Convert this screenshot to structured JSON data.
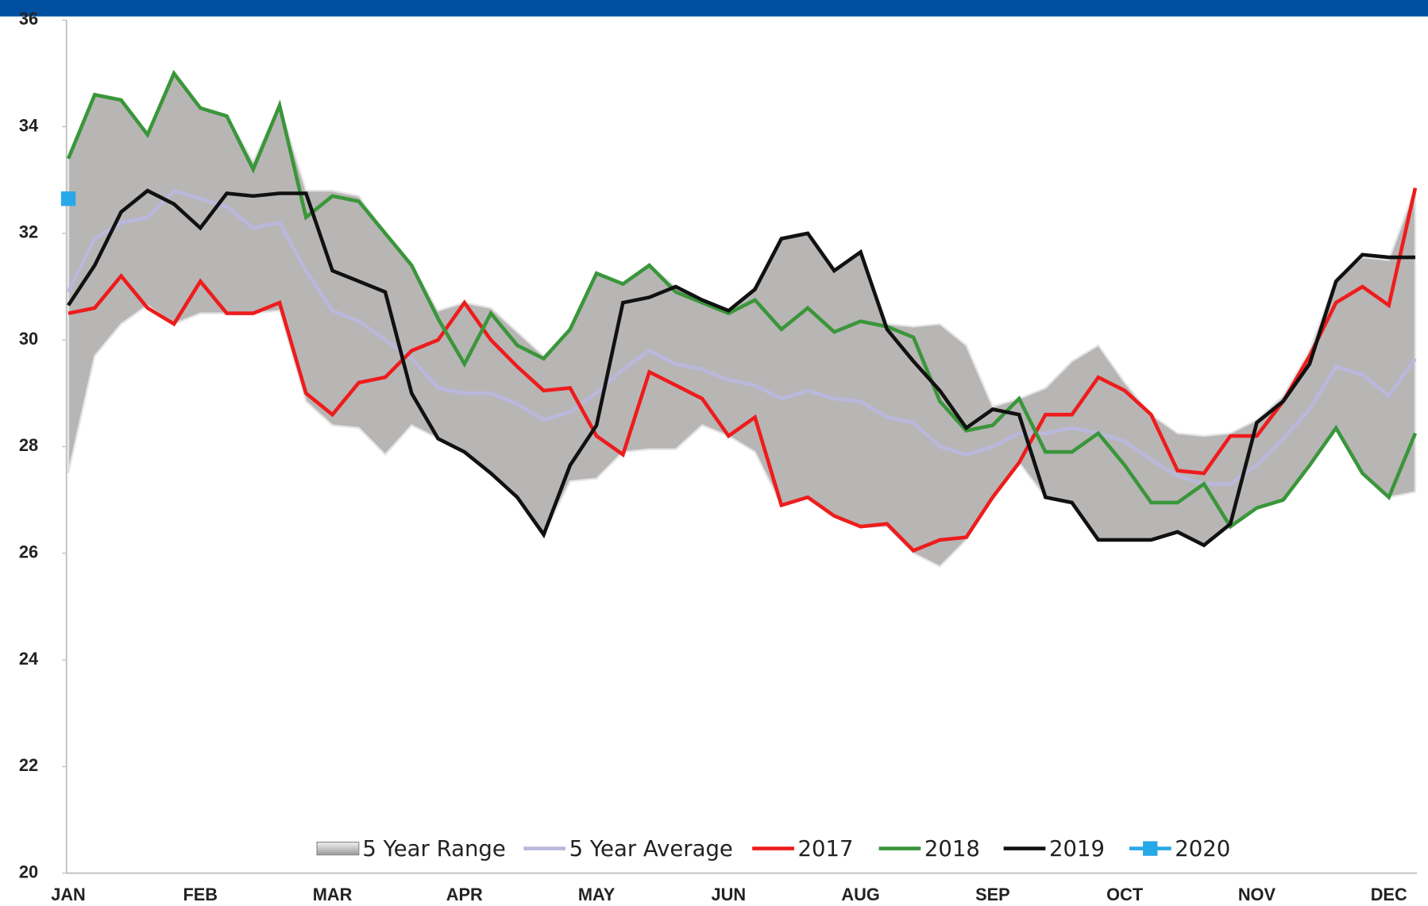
{
  "chart_data": {
    "type": "line",
    "categories": [
      "JAN",
      null,
      null,
      null,
      null,
      "FEB",
      null,
      null,
      null,
      null,
      "MAR",
      null,
      null,
      null,
      null,
      "APR",
      null,
      null,
      null,
      null,
      "MAY",
      null,
      null,
      null,
      null,
      "JUN",
      null,
      null,
      null,
      null,
      "AUG",
      null,
      null,
      null,
      null,
      "SEP",
      null,
      null,
      null,
      null,
      "OCT",
      null,
      null,
      null,
      null,
      "NOV",
      null,
      null,
      null,
      null,
      "DEC",
      null
    ],
    "ylim": [
      20,
      36
    ],
    "yticks": [
      20,
      22,
      24,
      26,
      28,
      30,
      32,
      34,
      36
    ],
    "grid": false,
    "legend": "bottom",
    "series": [
      {
        "name": "5 Year Range",
        "style": "band",
        "color": "#b8b5b5",
        "high": [
          33.4,
          34.6,
          34.5,
          33.85,
          35.0,
          34.35,
          34.2,
          33.35,
          34.4,
          32.8,
          32.8,
          32.7,
          32.0,
          31.4,
          30.55,
          30.7,
          30.6,
          30.15,
          29.7,
          30.2,
          31.25,
          31.05,
          31.4,
          31.0,
          30.75,
          30.55,
          31.0,
          31.9,
          32.0,
          31.3,
          31.65,
          30.3,
          30.25,
          30.3,
          29.9,
          28.75,
          28.9,
          29.1,
          29.6,
          29.9,
          29.2,
          28.6,
          28.25,
          28.2,
          28.25,
          28.5,
          28.95,
          29.8,
          31.15,
          31.55,
          31.5,
          32.85
        ],
        "low": [
          27.5,
          29.7,
          30.3,
          30.65,
          30.3,
          30.5,
          30.5,
          30.5,
          30.55,
          28.85,
          28.4,
          28.35,
          27.85,
          28.4,
          28.15,
          27.9,
          27.5,
          27.05,
          26.35,
          27.35,
          27.4,
          27.9,
          27.95,
          27.95,
          28.4,
          28.2,
          27.9,
          26.9,
          27.05,
          26.7,
          26.5,
          26.5,
          26.0,
          25.75,
          26.25,
          27.05,
          27.7,
          27.05,
          26.95,
          26.25,
          26.25,
          26.25,
          26.4,
          26.15,
          26.5,
          26.85,
          27.0,
          27.65,
          28.35,
          27.5,
          27.05,
          27.15
        ]
      },
      {
        "name": "5 Year Average",
        "style": "line",
        "color": "#b9b8dc",
        "values": [
          30.9,
          31.9,
          32.2,
          32.3,
          32.8,
          32.65,
          32.5,
          32.1,
          32.2,
          31.3,
          30.55,
          30.35,
          30.0,
          29.65,
          29.1,
          29.0,
          29.0,
          28.8,
          28.5,
          28.65,
          29.0,
          29.45,
          29.8,
          29.55,
          29.45,
          29.25,
          29.15,
          28.9,
          29.05,
          28.9,
          28.85,
          28.55,
          28.45,
          28.0,
          27.85,
          28.0,
          28.25,
          28.25,
          28.35,
          28.25,
          28.1,
          27.75,
          27.45,
          27.3,
          27.3,
          27.65,
          28.15,
          28.7,
          29.5,
          29.35,
          28.95,
          29.65
        ]
      },
      {
        "name": "2017",
        "style": "line",
        "color": "#ee1c1c",
        "values": [
          30.5,
          30.6,
          31.2,
          30.6,
          30.3,
          31.1,
          30.5,
          30.5,
          30.7,
          29.0,
          28.6,
          29.2,
          29.3,
          29.8,
          30.0,
          30.7,
          30.0,
          29.5,
          29.05,
          29.1,
          28.2,
          27.85,
          29.4,
          29.15,
          28.9,
          28.2,
          28.55,
          26.9,
          27.05,
          26.7,
          26.5,
          26.55,
          26.05,
          26.25,
          26.3,
          27.05,
          27.7,
          28.6,
          28.6,
          29.3,
          29.05,
          28.6,
          27.55,
          27.5,
          28.2,
          28.2,
          28.85,
          29.7,
          30.7,
          31.0,
          30.65,
          32.85
        ]
      },
      {
        "name": "2018",
        "style": "line",
        "color": "#3a963a",
        "values": [
          33.4,
          34.6,
          34.5,
          33.85,
          35.0,
          34.35,
          34.2,
          33.2,
          34.4,
          32.3,
          32.7,
          32.6,
          32.0,
          31.4,
          30.4,
          29.55,
          30.5,
          29.9,
          29.65,
          30.2,
          31.25,
          31.05,
          31.4,
          30.9,
          30.7,
          30.5,
          30.75,
          30.2,
          30.6,
          30.15,
          30.35,
          30.25,
          30.05,
          28.85,
          28.3,
          28.4,
          28.9,
          27.9,
          27.9,
          28.25,
          27.65,
          26.95,
          26.95,
          27.3,
          26.5,
          26.85,
          27.0,
          27.65,
          28.35,
          27.5,
          27.05,
          28.25
        ]
      },
      {
        "name": "2019",
        "style": "line",
        "color": "#111111",
        "values": [
          30.65,
          31.4,
          32.4,
          32.8,
          32.55,
          32.1,
          32.75,
          32.7,
          32.75,
          32.75,
          31.3,
          31.1,
          30.9,
          29.0,
          28.15,
          27.9,
          27.5,
          27.05,
          26.35,
          27.65,
          28.4,
          30.7,
          30.8,
          31.0,
          30.75,
          30.55,
          30.95,
          31.9,
          32.0,
          31.3,
          31.65,
          30.2,
          29.6,
          29.05,
          28.35,
          28.7,
          28.6,
          27.05,
          26.95,
          26.25,
          26.25,
          26.25,
          26.4,
          26.15,
          26.55,
          28.45,
          28.85,
          29.55,
          31.1,
          31.6,
          31.55,
          31.55
        ]
      },
      {
        "name": "2020",
        "style": "marker",
        "color": "#29a8e8",
        "values": [
          32.65,
          null,
          null,
          null,
          null,
          null,
          null,
          null,
          null,
          null,
          null,
          null,
          null,
          null,
          null,
          null,
          null,
          null,
          null,
          null,
          null,
          null,
          null,
          null,
          null,
          null,
          null,
          null,
          null,
          null,
          null,
          null,
          null,
          null,
          null,
          null,
          null,
          null,
          null,
          null,
          null,
          null,
          null,
          null,
          null,
          null,
          null,
          null,
          null,
          null,
          null,
          null
        ]
      }
    ]
  }
}
